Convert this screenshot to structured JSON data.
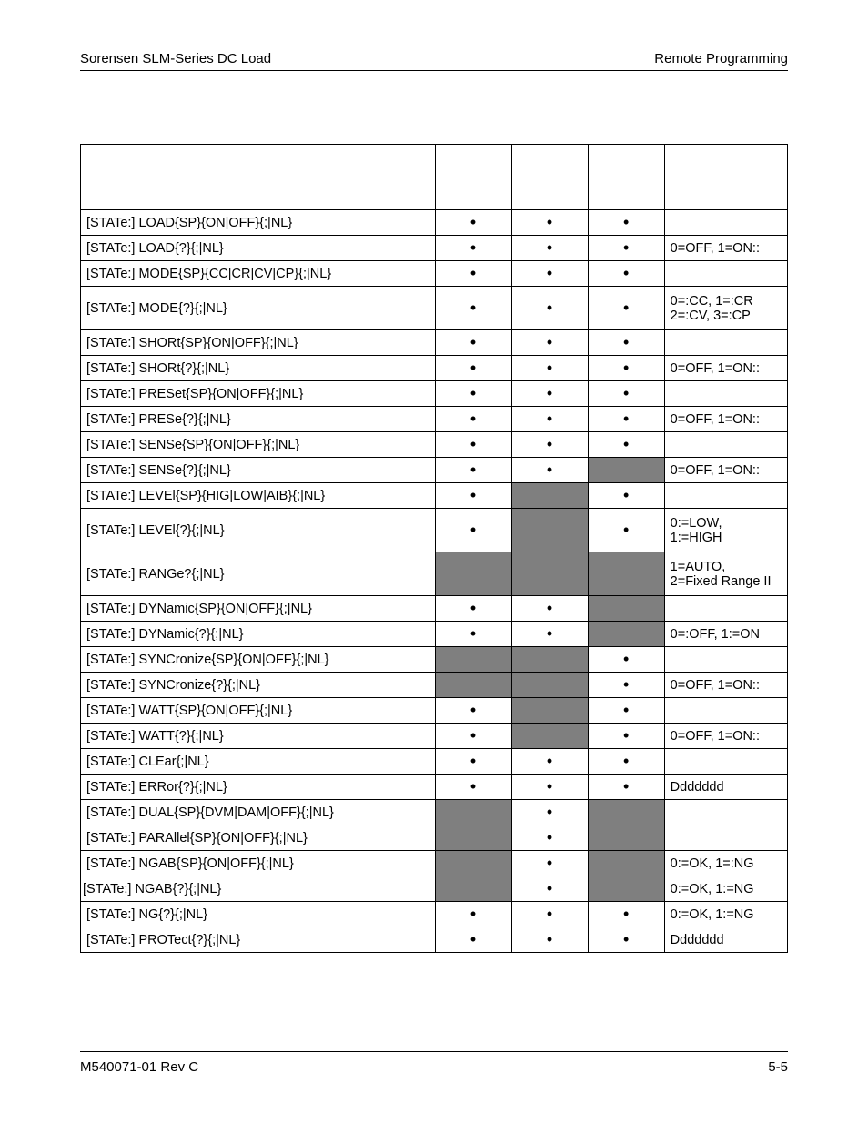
{
  "header": {
    "left": "Sorensen SLM-Series DC Load",
    "right": "Remote Programming"
  },
  "footer": {
    "left": "M540071-01 Rev C",
    "right": "5-5"
  },
  "dot": "•",
  "rows": [
    {
      "cmd": "[STATe:] LOAD{SP}{ON|OFF}{;|NL}",
      "c1": "dot",
      "c2": "dot",
      "c3": "dot",
      "note": ""
    },
    {
      "cmd": "[STATe:] LOAD{?}{;|NL}",
      "c1": "dot",
      "c2": "dot",
      "c3": "dot",
      "note": "0=OFF, 1=ON::"
    },
    {
      "cmd": "[STATe:] MODE{SP}{CC|CR|CV|CP}{;|NL}",
      "c1": "dot",
      "c2": "dot",
      "c3": "dot",
      "note": ""
    },
    {
      "cmd": "[STATe:] MODE{?}{;|NL}",
      "c1": "dot",
      "c2": "dot",
      "c3": "dot",
      "note": "0=:CC, 1=:CR\n2=:CV, 3=:CP",
      "tall": true
    },
    {
      "cmd": "[STATe:] SHORt{SP}{ON|OFF}{;|NL}",
      "c1": "dot",
      "c2": "dot",
      "c3": "dot",
      "note": ""
    },
    {
      "cmd": "[STATe:] SHORt{?}{;|NL}",
      "c1": "dot",
      "c2": "dot",
      "c3": "dot",
      "note": "0=OFF, 1=ON::"
    },
    {
      "cmd": "[STATe:] PRESet{SP}{ON|OFF}{;|NL}",
      "c1": "dot",
      "c2": "dot",
      "c3": "dot",
      "note": ""
    },
    {
      "cmd": "[STATe:] PRESe{?}{;|NL}",
      "c1": "dot",
      "c2": "dot",
      "c3": "dot",
      "note": "0=OFF, 1=ON::"
    },
    {
      "cmd": "[STATe:] SENSe{SP}{ON|OFF}{;|NL}",
      "c1": "dot",
      "c2": "dot",
      "c3": "dot",
      "note": ""
    },
    {
      "cmd": "[STATe:] SENSe{?}{;|NL}",
      "c1": "dot",
      "c2": "dot",
      "c3": "grey",
      "note": "0=OFF, 1=ON::"
    },
    {
      "cmd": "[STATe:] LEVEl{SP}{HIG|LOW|AIB}{;|NL}",
      "c1": "dot",
      "c2": "grey",
      "c3": "dot",
      "note": ""
    },
    {
      "cmd": "[STATe:] LEVEl{?}{;|NL}",
      "c1": "dot",
      "c2": "grey",
      "c3": "dot",
      "note": "0:=LOW,\n1:=HIGH",
      "tall": true
    },
    {
      "cmd": "[STATe:] RANGe?{;|NL}",
      "c1": "grey",
      "c2": "grey",
      "c3": "grey",
      "note": "1=AUTO,\n2=Fixed Range II",
      "tall": true
    },
    {
      "cmd": "[STATe:] DYNamic{SP}{ON|OFF}{;|NL}",
      "c1": "dot",
      "c2": "dot",
      "c3": "grey",
      "note": ""
    },
    {
      "cmd": "[STATe:] DYNamic{?}{;|NL}",
      "c1": "dot",
      "c2": "dot",
      "c3": "grey",
      "note": "0=:OFF, 1:=ON"
    },
    {
      "cmd": "[STATe:] SYNCronize{SP}{ON|OFF}{;|NL}",
      "c1": "grey",
      "c2": "grey",
      "c3": "dot",
      "note": ""
    },
    {
      "cmd": "[STATe:] SYNCronize{?}{;|NL}",
      "c1": "grey",
      "c2": "grey",
      "c3": "dot",
      "note": "0=OFF, 1=ON::"
    },
    {
      "cmd": "[STATe:] WATT{SP}{ON|OFF}{;|NL}",
      "c1": "dot",
      "c2": "grey",
      "c3": "dot",
      "note": ""
    },
    {
      "cmd": "[STATe:] WATT{?}{;|NL}",
      "c1": "dot",
      "c2": "grey",
      "c3": "dot",
      "note": "0=OFF, 1=ON::"
    },
    {
      "cmd": "[STATe:] CLEar{;|NL}",
      "c1": "dot",
      "c2": "dot",
      "c3": "dot",
      "note": ""
    },
    {
      "cmd": "[STATe:] ERRor{?}{;|NL}",
      "c1": "dot",
      "c2": "dot",
      "c3": "dot",
      "note": "Ddddddd"
    },
    {
      "cmd": "[STATe:] DUAL{SP}{DVM|DAM|OFF}{;|NL}",
      "c1": "grey",
      "c2": "dot",
      "c3": "grey",
      "note": ""
    },
    {
      "cmd": "[STATe:] PARAllel{SP}{ON|OFF}{;|NL}",
      "c1": "grey",
      "c2": "dot",
      "c3": "grey",
      "note": ""
    },
    {
      "cmd": "[STATe:] NGAB{SP}{ON|OFF}{;|NL}",
      "c1": "grey",
      "c2": "dot",
      "c3": "grey",
      "note": "0:=OK, 1=:NG"
    },
    {
      "cmd": "[STATe:] NGAB{?}{;|NL}",
      "c1": "grey",
      "c2": "dot",
      "c3": "grey",
      "note": "0:=OK, 1:=NG",
      "noindent": true
    },
    {
      "cmd": "[STATe:] NG{?}{;|NL}",
      "c1": "dot",
      "c2": "dot",
      "c3": "dot",
      "note": "0:=OK, 1:=NG"
    },
    {
      "cmd": "[STATe:] PROTect{?}{;|NL}",
      "c1": "dot",
      "c2": "dot",
      "c3": "dot",
      "note": "Ddddddd"
    }
  ]
}
